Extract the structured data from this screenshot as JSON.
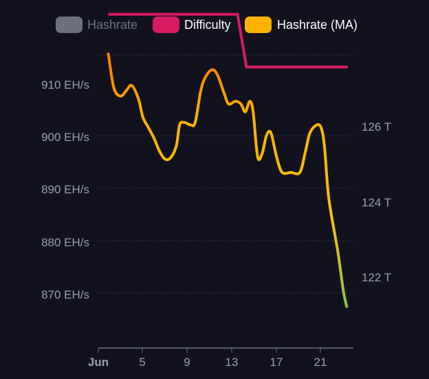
{
  "chart_data": {
    "type": "line",
    "legend": {
      "position": "top-center",
      "items": [
        {
          "label": "Hashrate",
          "color": "#6d717c",
          "hidden": true
        },
        {
          "label": "Difficulty",
          "color": "#d81b60",
          "hidden": false
        },
        {
          "label": "Hashrate (MA)",
          "color": "#ffb300",
          "hidden": false
        }
      ]
    },
    "y_left": {
      "ticks": [
        "910 EH/s",
        "900 EH/s",
        "890 EH/s",
        "880 EH/s",
        "870 EH/s"
      ],
      "values": [
        910,
        900,
        890,
        880,
        870
      ],
      "range": [
        865,
        915
      ]
    },
    "y_right": {
      "ticks": [
        "126 T",
        "124 T",
        "122 T"
      ],
      "values": [
        126,
        124,
        122
      ],
      "range": [
        120.8,
        130
      ]
    },
    "x_axis": {
      "ticks": [
        "Jun",
        "5",
        "9",
        "13",
        "17",
        "21"
      ],
      "values": [
        1,
        5,
        9,
        13,
        17,
        21
      ],
      "range": [
        1,
        23.5
      ]
    },
    "grid": true,
    "series": [
      {
        "name": "Difficulty",
        "axis": "right",
        "color": "#d81b60",
        "points": [
          [
            2,
            129.0
          ],
          [
            13.5,
            129.0
          ],
          [
            14.3,
            127.6
          ],
          [
            23.3,
            127.6
          ]
        ]
      },
      {
        "name": "Hashrate (MA)",
        "axis": "left",
        "color_gradient": [
          "#ff8a00",
          "#ffc107",
          "#8bc34a"
        ],
        "points": [
          [
            1.9,
            915.5
          ],
          [
            2.4,
            909.0
          ],
          [
            3.0,
            907.5
          ],
          [
            3.5,
            908.5
          ],
          [
            4.0,
            909.5
          ],
          [
            4.6,
            907.0
          ],
          [
            5.0,
            903.5
          ],
          [
            5.5,
            901.5
          ],
          [
            6.0,
            899.5
          ],
          [
            6.5,
            897.0
          ],
          [
            7.0,
            895.5
          ],
          [
            7.5,
            895.8
          ],
          [
            8.0,
            898.0
          ],
          [
            8.3,
            902.0
          ],
          [
            8.7,
            902.5
          ],
          [
            9.3,
            902.0
          ],
          [
            9.7,
            902.5
          ],
          [
            10.2,
            908.5
          ],
          [
            10.6,
            911.0
          ],
          [
            11.2,
            912.5
          ],
          [
            11.7,
            911.5
          ],
          [
            12.3,
            908.0
          ],
          [
            12.7,
            906.0
          ],
          [
            13.3,
            906.5
          ],
          [
            13.8,
            906.0
          ],
          [
            14.2,
            904.5
          ],
          [
            14.6,
            906.5
          ],
          [
            14.9,
            904.5
          ],
          [
            15.3,
            896.0
          ],
          [
            15.7,
            896.5
          ],
          [
            16.1,
            900.0
          ],
          [
            16.5,
            900.5
          ],
          [
            17.0,
            896.0
          ],
          [
            17.5,
            893.0
          ],
          [
            18.3,
            893.0
          ],
          [
            19.1,
            893.0
          ],
          [
            19.6,
            897.0
          ],
          [
            20.0,
            900.5
          ],
          [
            20.6,
            902.0
          ],
          [
            21.0,
            901.5
          ],
          [
            21.3,
            898.0
          ],
          [
            21.7,
            888.0
          ],
          [
            22.5,
            878.0
          ],
          [
            23.0,
            870.5
          ],
          [
            23.3,
            867.5
          ]
        ]
      }
    ]
  }
}
